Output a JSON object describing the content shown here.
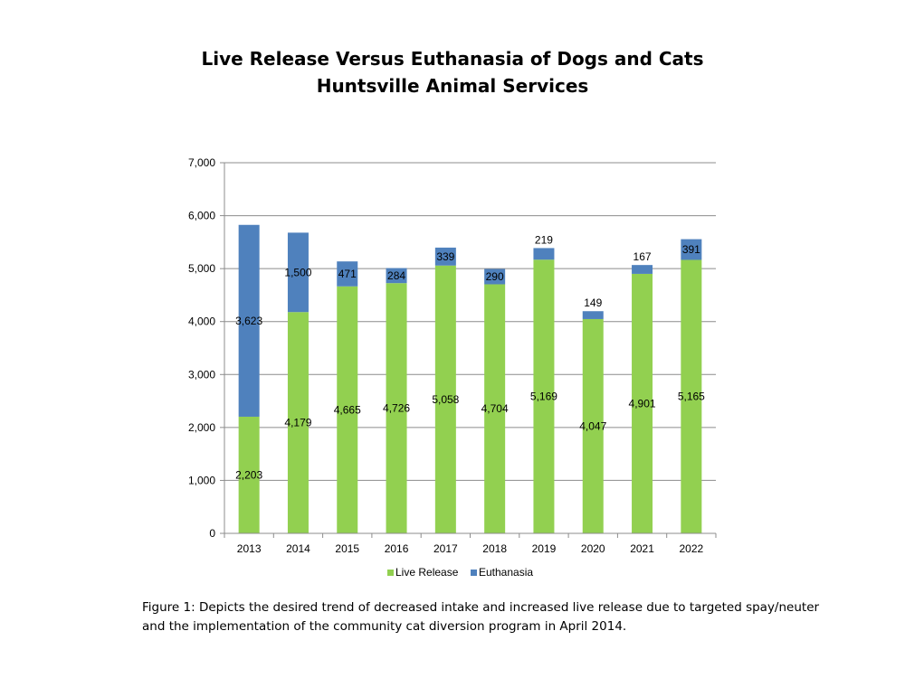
{
  "chart_data": {
    "type": "bar",
    "stacked": true,
    "title": "Live Release Versus Euthanasia of Dogs and Cats",
    "subtitle": "Huntsville Animal Services",
    "categories": [
      "2013",
      "2014",
      "2015",
      "2016",
      "2017",
      "2018",
      "2019",
      "2020",
      "2021",
      "2022"
    ],
    "series": [
      {
        "name": "Live Release",
        "color": "#92d050",
        "values": [
          2203,
          4179,
          4665,
          4726,
          5058,
          4704,
          5169,
          4047,
          4901,
          5165
        ],
        "labels": [
          "2,203",
          "4,179",
          "4,665",
          "4,726",
          "5,058",
          "4,704",
          "5,169",
          "4,047",
          "4,901",
          "5,165"
        ]
      },
      {
        "name": "Euthanasia",
        "color": "#4f81bd",
        "values": [
          3623,
          1500,
          471,
          284,
          339,
          290,
          219,
          149,
          167,
          391
        ],
        "labels": [
          "3,623",
          "1,500",
          "471",
          "284",
          "339",
          "290",
          "219",
          "149",
          "167",
          "391"
        ]
      }
    ],
    "ylim": [
      0,
      7000
    ],
    "yticks": [
      0,
      1000,
      2000,
      3000,
      4000,
      5000,
      6000,
      7000
    ],
    "ytick_labels": [
      "0",
      "1,000",
      "2,000",
      "3,000",
      "4,000",
      "5,000",
      "6,000",
      "7,000"
    ],
    "xlabel": "",
    "ylabel": "",
    "grid": true,
    "legend_position": "bottom"
  },
  "caption": {
    "line1": "Figure 1: Depicts the desired trend of decreased intake and increased live release due to targeted spay/neuter",
    "line2": "and the implementation of the community cat diversion program in April 2014."
  }
}
